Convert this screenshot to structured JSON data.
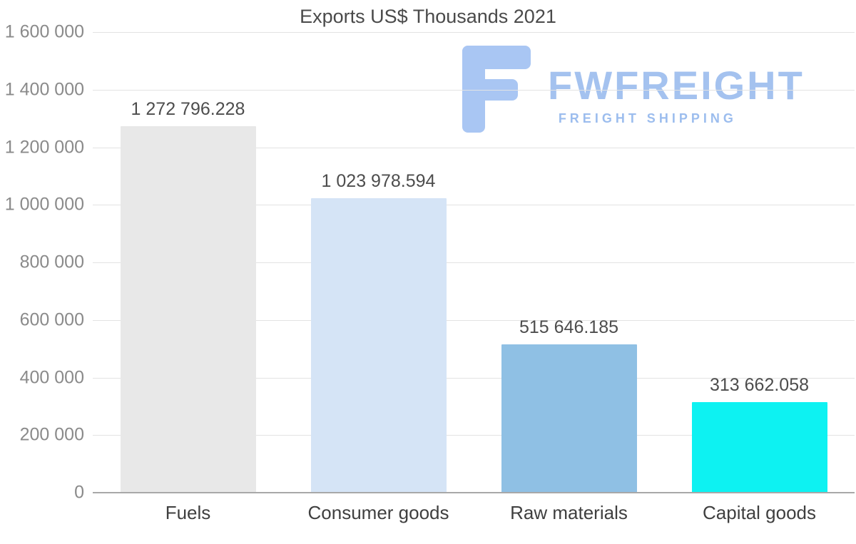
{
  "title": "Exports US$ Thousands 2021",
  "logo": {
    "name": "FWFREIGHT",
    "subtitle": "FREIGHT SHIPPING",
    "color": "#a9c6f3"
  },
  "chart_data": {
    "type": "bar",
    "title": "Exports US$ Thousands 2021",
    "categories": [
      "Fuels",
      "Consumer goods",
      "Raw materials",
      "Capital goods"
    ],
    "values": [
      1272796.228,
      1023978.594,
      515646.185,
      313662.058
    ],
    "value_labels": [
      "1 272 796.228",
      "1 023 978.594",
      "515 646.185",
      "313 662.058"
    ],
    "bar_colors": [
      "#e8e8e8",
      "#d5e4f6",
      "#8fc0e4",
      "#0df2f2"
    ],
    "xlabel": "",
    "ylabel": "",
    "ylim": [
      0,
      1600000
    ],
    "ytick_interval": 200000,
    "ytick_labels": [
      "0",
      "200 000",
      "400 000",
      "600 000",
      "800 000",
      "1 000 000",
      "1 200 000",
      "1 400 000",
      "1 600 000"
    ],
    "grid": "horizontal",
    "legend": "none"
  }
}
